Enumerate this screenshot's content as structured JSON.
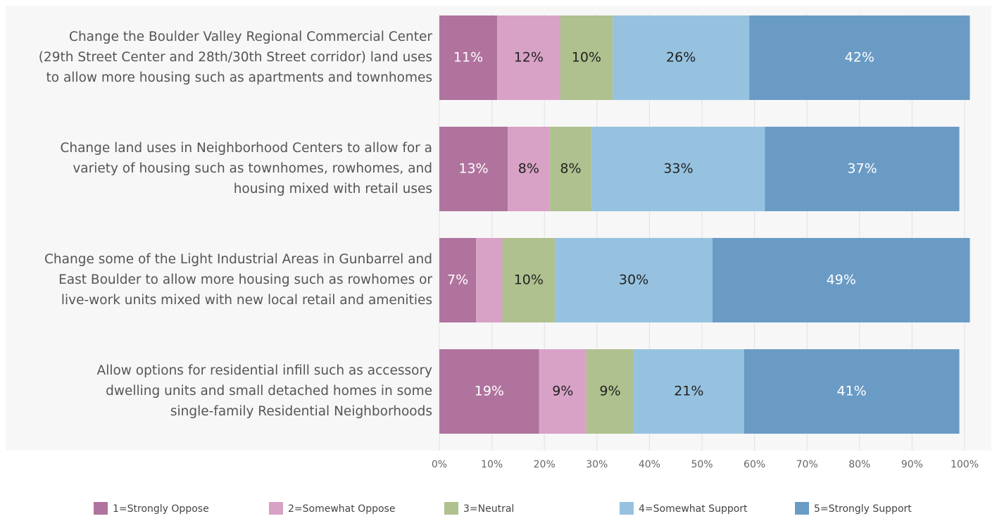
{
  "chart_data": {
    "type": "stacked-bar-horizontal",
    "categories": [
      [
        "Change the Boulder Valley Regional Commercial Center",
        "(29th Street Center and 28th/30th Street corridor) land uses",
        "to allow more housing such as apartments and townhomes"
      ],
      [
        "Change land uses in Neighborhood Centers to allow for a",
        "variety of housing such as townhomes, rowhomes, and",
        "housing mixed with retail uses"
      ],
      [
        "Change some of the Light Industrial Areas in Gunbarrel and",
        "East Boulder to allow more housing such as rowhomes or",
        "live-work units mixed with new local retail and amenities"
      ],
      [
        "Allow options for residential infill such as accessory",
        "dwelling units and small detached homes in some",
        "single-family Residential Neighborhoods"
      ]
    ],
    "series": [
      {
        "name": "1=Strongly Oppose",
        "color": "#b0739e",
        "values": [
          11,
          13,
          7,
          19
        ],
        "value_labels": [
          "11%",
          "13%",
          "7%",
          "19%"
        ]
      },
      {
        "name": "2=Somewhat Oppose",
        "color": "#d8a2c6",
        "values": [
          12,
          8,
          5,
          9
        ],
        "value_labels": [
          "12%",
          "8%",
          null,
          "9%"
        ]
      },
      {
        "name": "3=Neutral",
        "color": "#afc18e",
        "values": [
          10,
          8,
          10,
          9
        ],
        "value_labels": [
          "10%",
          "8%",
          "10%",
          "9%"
        ]
      },
      {
        "name": "4=Somewhat Support",
        "color": "#96c2e0",
        "values": [
          26,
          33,
          30,
          21
        ],
        "value_labels": [
          "26%",
          "33%",
          "30%",
          "21%"
        ]
      },
      {
        "name": "5=Strongly Support",
        "color": "#6a9bc5",
        "values": [
          42,
          37,
          49,
          41
        ],
        "value_labels": [
          "42%",
          "37%",
          "49%",
          "41%"
        ]
      }
    ],
    "xlim": [
      0,
      100
    ],
    "xticks": [
      {
        "value": 0,
        "label": "0%"
      },
      {
        "value": 10,
        "label": "10%"
      },
      {
        "value": 20,
        "label": "20%"
      },
      {
        "value": 30,
        "label": "30%"
      },
      {
        "value": 40,
        "label": "40%"
      },
      {
        "value": 50,
        "label": "50%"
      },
      {
        "value": 60,
        "label": "60%"
      },
      {
        "value": 70,
        "label": "70%"
      },
      {
        "value": 80,
        "label": "80%"
      },
      {
        "value": 90,
        "label": "90%"
      },
      {
        "value": 100,
        "label": "100%"
      }
    ],
    "grid": true,
    "legend": "bottom"
  }
}
